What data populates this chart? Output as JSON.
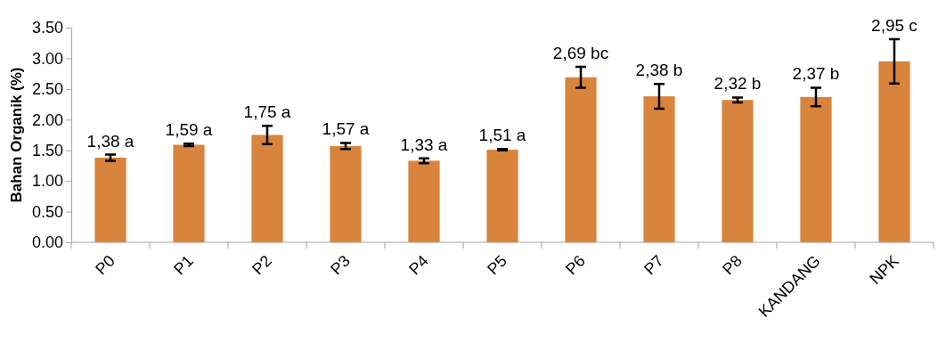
{
  "chart_data": {
    "type": "bar",
    "ylabel": "Bahan Organik (%)",
    "categories": [
      "P0",
      "P1",
      "P2",
      "P3",
      "P4",
      "P5",
      "P6",
      "P7",
      "P8",
      "KANDANG",
      "NPK"
    ],
    "values": [
      1.38,
      1.59,
      1.75,
      1.57,
      1.33,
      1.51,
      2.69,
      2.38,
      2.32,
      2.37,
      2.95
    ],
    "errors": [
      0.05,
      0.02,
      0.15,
      0.05,
      0.04,
      0.01,
      0.17,
      0.2,
      0.04,
      0.15,
      0.36
    ],
    "value_labels": [
      "1,38 a",
      "1,59 a",
      "1,75 a",
      "1,57 a",
      "1,33 a",
      "1,51 a",
      "2,69 bc",
      "2,38 b",
      "2,32 b",
      "2,37 b",
      "2,95 c"
    ],
    "color": "#d9843d",
    "ylim": [
      0,
      3.5
    ],
    "yticks": [
      {
        "value": 0,
        "label": "0.00"
      },
      {
        "value": 0.5,
        "label": "0.50"
      },
      {
        "value": 1,
        "label": "1.00"
      },
      {
        "value": 1.5,
        "label": "1.50"
      },
      {
        "value": 2,
        "label": "2.00"
      },
      {
        "value": 2.5,
        "label": "2.50"
      },
      {
        "value": 3,
        "label": "3.00"
      },
      {
        "value": 3.5,
        "label": "3.50"
      }
    ],
    "grid": false
  }
}
